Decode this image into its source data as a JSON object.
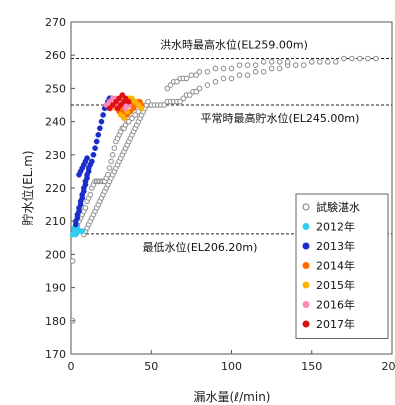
{
  "chart_data": {
    "type": "scatter",
    "xlabel": "漏水量(ℓ/min)",
    "ylabel": "貯水位(EL.m)",
    "xlim": [
      0,
      200
    ],
    "ylim": [
      170,
      270
    ],
    "xticks": [
      0,
      50,
      100,
      150,
      200
    ],
    "yticks": [
      170,
      180,
      190,
      200,
      210,
      220,
      230,
      240,
      250,
      260,
      270
    ],
    "grid": false,
    "legend_position": "right",
    "reference_lines": [
      {
        "y": 259.0,
        "label": "洪水時最高水位(EL259.00m)"
      },
      {
        "y": 245.0,
        "label": "平常時最高貯水位(EL245.00m)"
      },
      {
        "y": 206.2,
        "label": "最低水位(EL206.20m)"
      }
    ],
    "series": [
      {
        "name": "試験湛水",
        "color": "#8c8c8c",
        "filled": false,
        "points": [
          [
            1,
            180
          ],
          [
            1,
            198
          ],
          [
            2,
            207
          ],
          [
            3,
            208
          ],
          [
            4,
            209
          ],
          [
            5,
            210
          ],
          [
            6,
            211
          ],
          [
            7,
            212
          ],
          [
            8,
            213
          ],
          [
            9,
            214
          ],
          [
            10,
            216
          ],
          [
            11,
            217
          ],
          [
            12,
            218
          ],
          [
            13,
            220
          ],
          [
            14,
            221
          ],
          [
            15,
            222
          ],
          [
            16,
            222
          ],
          [
            17,
            222
          ],
          [
            18,
            222
          ],
          [
            19,
            222
          ],
          [
            20,
            222
          ],
          [
            21,
            222
          ],
          [
            22,
            223
          ],
          [
            23,
            224
          ],
          [
            24,
            226
          ],
          [
            25,
            228
          ],
          [
            26,
            230
          ],
          [
            27,
            232
          ],
          [
            28,
            234
          ],
          [
            29,
            235
          ],
          [
            30,
            236
          ],
          [
            31,
            237
          ],
          [
            32,
            238
          ],
          [
            33,
            238
          ],
          [
            34,
            239
          ],
          [
            35,
            240
          ],
          [
            36,
            240
          ],
          [
            38,
            241
          ],
          [
            40,
            242
          ],
          [
            42,
            243
          ],
          [
            44,
            244
          ],
          [
            46,
            244
          ],
          [
            48,
            245
          ],
          [
            50,
            245
          ],
          [
            52,
            245
          ],
          [
            54,
            245
          ],
          [
            56,
            245
          ],
          [
            58,
            245
          ],
          [
            60,
            246
          ],
          [
            62,
            246
          ],
          [
            64,
            246
          ],
          [
            66,
            246
          ],
          [
            68,
            246
          ],
          [
            70,
            247
          ],
          [
            72,
            248
          ],
          [
            74,
            248
          ],
          [
            76,
            249
          ],
          [
            78,
            249
          ],
          [
            80,
            250
          ],
          [
            85,
            251
          ],
          [
            90,
            252
          ],
          [
            95,
            253
          ],
          [
            100,
            253
          ],
          [
            105,
            254
          ],
          [
            110,
            254
          ],
          [
            115,
            255
          ],
          [
            120,
            255
          ],
          [
            125,
            256
          ],
          [
            130,
            256
          ],
          [
            135,
            257
          ],
          [
            140,
            257
          ],
          [
            145,
            257
          ],
          [
            150,
            258
          ],
          [
            155,
            258
          ],
          [
            160,
            258
          ],
          [
            165,
            258
          ],
          [
            170,
            259
          ],
          [
            175,
            259
          ],
          [
            180,
            259
          ],
          [
            185,
            259
          ],
          [
            190,
            259
          ],
          [
            60,
            250
          ],
          [
            62,
            251
          ],
          [
            64,
            252
          ],
          [
            66,
            252
          ],
          [
            68,
            253
          ],
          [
            70,
            253
          ],
          [
            72,
            253
          ],
          [
            75,
            254
          ],
          [
            78,
            254
          ],
          [
            80,
            255
          ],
          [
            85,
            255
          ],
          [
            90,
            256
          ],
          [
            95,
            256
          ],
          [
            100,
            256
          ],
          [
            105,
            257
          ],
          [
            110,
            257
          ],
          [
            115,
            257
          ],
          [
            120,
            258
          ],
          [
            125,
            258
          ],
          [
            130,
            258
          ],
          [
            135,
            258
          ],
          [
            8,
            206
          ],
          [
            9,
            207
          ],
          [
            10,
            208
          ],
          [
            11,
            209
          ],
          [
            12,
            210
          ],
          [
            13,
            211
          ],
          [
            14,
            212
          ],
          [
            15,
            213
          ],
          [
            16,
            214
          ],
          [
            17,
            215
          ],
          [
            18,
            216
          ],
          [
            19,
            217
          ],
          [
            20,
            218
          ],
          [
            21,
            219
          ],
          [
            22,
            220
          ],
          [
            23,
            221
          ],
          [
            24,
            222
          ],
          [
            25,
            223
          ],
          [
            26,
            224
          ],
          [
            27,
            225
          ],
          [
            28,
            226
          ],
          [
            29,
            227
          ],
          [
            30,
            228
          ],
          [
            31,
            229
          ],
          [
            32,
            230
          ],
          [
            33,
            231
          ],
          [
            34,
            232
          ],
          [
            35,
            233
          ],
          [
            36,
            234
          ],
          [
            37,
            235
          ],
          [
            38,
            236
          ],
          [
            39,
            237
          ],
          [
            40,
            238
          ],
          [
            41,
            239
          ],
          [
            42,
            240
          ],
          [
            43,
            241
          ],
          [
            44,
            242
          ],
          [
            45,
            243
          ],
          [
            46,
            244
          ],
          [
            47,
            245
          ],
          [
            48,
            246
          ]
        ]
      },
      {
        "name": "2012年",
        "color": "#33ccee",
        "filled": true,
        "points": [
          [
            1,
            206
          ],
          [
            2,
            207
          ],
          [
            2,
            208
          ],
          [
            3,
            206
          ],
          [
            3,
            207
          ],
          [
            4,
            207
          ],
          [
            4,
            208
          ],
          [
            5,
            207
          ],
          [
            6,
            207
          ],
          [
            7,
            207
          ]
        ]
      },
      {
        "name": "2013年",
        "color": "#1a2ecc",
        "filled": true,
        "points": [
          [
            3,
            209
          ],
          [
            3,
            210
          ],
          [
            4,
            211
          ],
          [
            4,
            212
          ],
          [
            5,
            213
          ],
          [
            5,
            214
          ],
          [
            6,
            215
          ],
          [
            6,
            216
          ],
          [
            7,
            217
          ],
          [
            7,
            218
          ],
          [
            8,
            219
          ],
          [
            8,
            220
          ],
          [
            9,
            221
          ],
          [
            9,
            222
          ],
          [
            10,
            223
          ],
          [
            10,
            224
          ],
          [
            11,
            225
          ],
          [
            11,
            226
          ],
          [
            12,
            227
          ],
          [
            13,
            228
          ],
          [
            14,
            230
          ],
          [
            15,
            232
          ],
          [
            16,
            234
          ],
          [
            17,
            236
          ],
          [
            18,
            238
          ],
          [
            19,
            240
          ],
          [
            20,
            242
          ],
          [
            21,
            244
          ],
          [
            22,
            245
          ],
          [
            23,
            246
          ],
          [
            24,
            247
          ],
          [
            25,
            247
          ],
          [
            5,
            224
          ],
          [
            6,
            225
          ],
          [
            7,
            226
          ],
          [
            8,
            227
          ],
          [
            9,
            228
          ],
          [
            10,
            229
          ]
        ]
      },
      {
        "name": "2014年",
        "color": "#ff6a00",
        "filled": true,
        "points": [
          [
            30,
            243
          ],
          [
            32,
            244
          ],
          [
            34,
            244
          ],
          [
            36,
            245
          ],
          [
            38,
            245
          ],
          [
            40,
            246
          ],
          [
            42,
            246
          ],
          [
            44,
            245
          ],
          [
            33,
            243
          ],
          [
            35,
            242
          ],
          [
            37,
            243
          ],
          [
            39,
            244
          ],
          [
            41,
            245
          ],
          [
            43,
            246
          ]
        ]
      },
      {
        "name": "2015年",
        "color": "#ffb300",
        "filled": true,
        "points": [
          [
            28,
            244
          ],
          [
            30,
            245
          ],
          [
            32,
            246
          ],
          [
            34,
            246
          ],
          [
            36,
            247
          ],
          [
            38,
            247
          ],
          [
            40,
            246
          ],
          [
            42,
            245
          ],
          [
            44,
            244
          ],
          [
            31,
            242
          ],
          [
            33,
            241
          ],
          [
            35,
            243
          ]
        ]
      },
      {
        "name": "2016年",
        "color": "#ff88bb",
        "filled": true,
        "points": [
          [
            22,
            245
          ],
          [
            24,
            246
          ],
          [
            26,
            247
          ],
          [
            28,
            247
          ],
          [
            30,
            246
          ],
          [
            32,
            245
          ],
          [
            34,
            244
          ],
          [
            36,
            245
          ],
          [
            25,
            244
          ],
          [
            27,
            245
          ]
        ]
      },
      {
        "name": "2017年",
        "color": "#dd1111",
        "filled": true,
        "points": [
          [
            24,
            244
          ],
          [
            26,
            245
          ],
          [
            28,
            246
          ],
          [
            30,
            247
          ],
          [
            32,
            248
          ],
          [
            34,
            247
          ],
          [
            36,
            246
          ],
          [
            29,
            244
          ],
          [
            31,
            245
          ],
          [
            33,
            246
          ]
        ]
      }
    ]
  }
}
